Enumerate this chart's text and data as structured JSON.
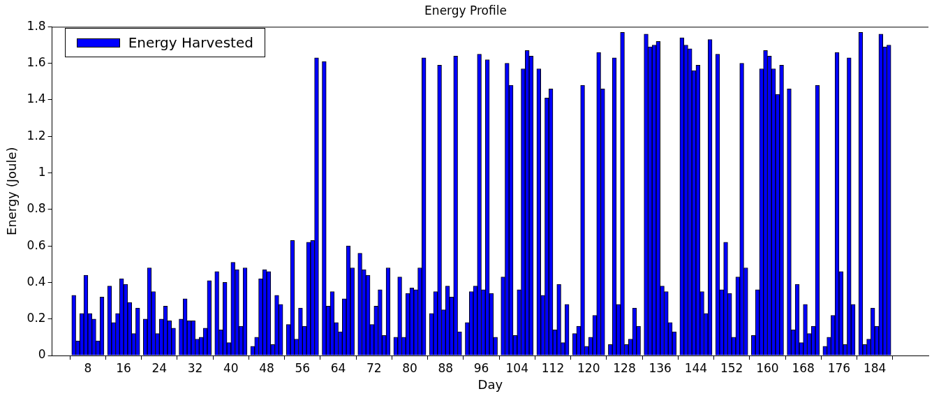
{
  "chart_data": {
    "type": "bar",
    "title": "Energy Profile",
    "xlabel": "Day",
    "ylabel": "Energy (Joule)",
    "xlim": [
      0,
      196
    ],
    "xticks": [
      8,
      16,
      24,
      32,
      40,
      48,
      56,
      64,
      72,
      80,
      88,
      96,
      104,
      112,
      120,
      128,
      136,
      144,
      152,
      160,
      168,
      176,
      184
    ],
    "ylim": [
      0,
      1.8
    ],
    "yticks": [
      0,
      0.2,
      0.4,
      0.6,
      0.8,
      1,
      1.2,
      1.4,
      1.6,
      1.8
    ],
    "grid": false,
    "legend": "top left",
    "x": [
      4.85,
      5.75,
      6.65,
      7.55,
      8.45,
      9.35,
      10.25,
      11.15,
      12.85,
      13.75,
      14.65,
      15.55,
      16.45,
      17.35,
      18.25,
      19.15,
      20.85,
      21.75,
      22.65,
      23.55,
      24.45,
      25.35,
      26.25,
      27.15,
      28.85,
      29.75,
      30.65,
      31.55,
      32.45,
      33.35,
      34.25,
      35.15,
      36.85,
      37.75,
      38.65,
      39.55,
      40.45,
      41.35,
      42.25,
      43.15,
      44.85,
      45.75,
      46.65,
      47.55,
      48.45,
      49.35,
      50.25,
      51.15,
      52.85,
      53.75,
      54.65,
      55.55,
      56.45,
      57.35,
      58.25,
      59.15,
      60.85,
      61.75,
      62.65,
      63.55,
      64.45,
      65.35,
      66.25,
      67.15,
      68.85,
      69.75,
      70.65,
      71.55,
      72.45,
      73.35,
      74.25,
      75.15,
      76.85,
      77.75,
      78.65,
      79.55,
      80.45,
      81.35,
      82.25,
      83.15,
      84.85,
      85.75,
      86.65,
      87.55,
      88.45,
      89.35,
      90.25,
      91.15,
      92.85,
      93.75,
      94.65,
      95.55,
      96.45,
      97.35,
      98.25,
      99.15,
      100.85,
      101.75,
      102.65,
      103.55,
      104.45,
      105.35,
      106.25,
      107.15,
      108.85,
      109.75,
      110.65,
      111.55,
      112.45,
      113.35,
      114.25,
      115.15,
      116.85,
      117.75,
      118.65,
      119.55,
      120.45,
      121.35,
      122.25,
      123.15,
      124.85,
      125.75,
      126.65,
      127.55,
      128.45,
      129.35,
      130.25,
      131.15,
      132.85,
      133.75,
      134.65,
      135.55,
      136.45,
      137.35,
      138.25,
      139.15,
      140.85,
      141.75,
      142.65,
      143.55,
      144.45,
      145.35,
      146.25,
      147.15,
      148.85,
      149.75,
      150.65,
      151.55,
      152.45,
      153.35,
      154.25,
      155.15,
      156.85,
      157.75,
      158.65,
      159.55,
      160.45,
      161.35,
      162.25,
      163.15,
      164.85,
      165.75,
      166.65,
      167.55,
      168.45,
      169.35,
      170.25,
      171.15,
      172.85,
      173.75,
      174.65,
      175.55,
      176.45,
      177.35,
      178.25,
      179.15,
      180.85,
      181.75,
      182.65,
      183.55,
      184.45,
      185.35,
      186.25,
      187.15
    ],
    "series": [
      {
        "name": "Energy Harvested",
        "color": "#0000ff",
        "values": [
          0.33,
          0.08,
          0.23,
          0.44,
          0.23,
          0.2,
          0.08,
          0.32,
          0.38,
          0.18,
          0.23,
          0.42,
          0.39,
          0.29,
          0.12,
          0.26,
          0.2,
          0.48,
          0.35,
          0.12,
          0.2,
          0.27,
          0.19,
          0.15,
          0.2,
          0.31,
          0.19,
          0.19,
          0.09,
          0.1,
          0.15,
          0.41,
          0.46,
          0.14,
          0.4,
          0.07,
          0.51,
          0.47,
          0.16,
          0.48,
          0.05,
          0.1,
          0.42,
          0.47,
          0.46,
          0.06,
          0.33,
          0.28,
          0.17,
          0.63,
          0.09,
          0.26,
          0.16,
          0.62,
          0.63,
          1.63,
          1.61,
          0.27,
          0.35,
          0.18,
          0.13,
          0.31,
          0.6,
          0.48,
          0.56,
          0.47,
          0.44,
          0.17,
          0.27,
          0.36,
          0.11,
          0.48,
          0.1,
          0.43,
          0.1,
          0.34,
          0.37,
          0.36,
          0.48,
          1.63,
          0.23,
          0.35,
          1.59,
          0.25,
          0.38,
          0.32,
          1.64,
          0.13,
          0.18,
          0.35,
          0.38,
          1.65,
          0.36,
          1.62,
          0.34,
          0.1,
          0.43,
          1.6,
          1.48,
          0.11,
          0.36,
          1.57,
          1.67,
          1.64,
          1.57,
          0.33,
          1.41,
          1.46,
          0.14,
          0.39,
          0.07,
          0.28,
          0.12,
          0.16,
          1.48,
          0.05,
          0.1,
          0.22,
          1.66,
          1.46,
          0.06,
          1.63,
          0.28,
          1.77,
          0.06,
          0.09,
          0.26,
          0.16,
          1.76,
          1.69,
          1.7,
          1.72,
          0.38,
          0.35,
          0.18,
          0.13,
          1.74,
          1.7,
          1.68,
          1.56,
          1.59,
          0.35,
          0.23,
          1.73,
          1.65,
          0.36,
          0.62,
          0.34,
          0.1,
          0.43,
          1.6,
          0.48,
          0.11,
          0.36,
          1.57,
          1.67,
          1.64,
          1.57,
          1.43,
          1.59,
          1.46,
          0.14,
          0.39,
          0.07,
          0.28,
          0.12,
          0.16,
          1.48,
          0.05,
          0.1,
          0.22,
          1.66,
          0.46,
          0.06,
          1.63,
          0.28,
          1.77,
          0.06,
          0.09,
          0.26,
          0.16,
          1.76,
          1.69,
          1.7
        ]
      }
    ]
  }
}
